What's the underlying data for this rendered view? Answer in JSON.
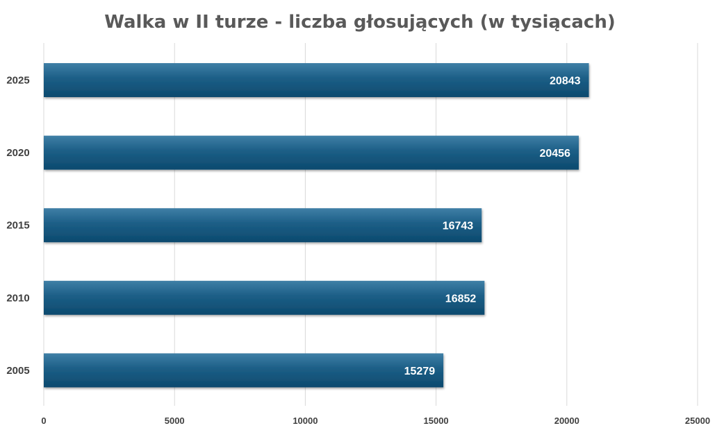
{
  "chart_data": {
    "type": "bar",
    "orientation": "horizontal",
    "title": "Walka w II turze - liczba głosujących (w tysiącach)",
    "xlabel": "",
    "ylabel": "",
    "categories": [
      "2025",
      "2020",
      "2015",
      "2010",
      "2005"
    ],
    "values": [
      20843,
      20456,
      16743,
      16852,
      15279
    ],
    "xlim": [
      0,
      25000
    ],
    "xticks": [
      "0",
      "5000",
      "10000",
      "15000",
      "20000",
      "25000"
    ],
    "grid": true,
    "legend": "none",
    "colors": {
      "bar_top": "#3f7fa6",
      "bar_mid": "#1c5e86",
      "bar_bottom": "#0c4a6e",
      "label": "#ffffff"
    }
  }
}
